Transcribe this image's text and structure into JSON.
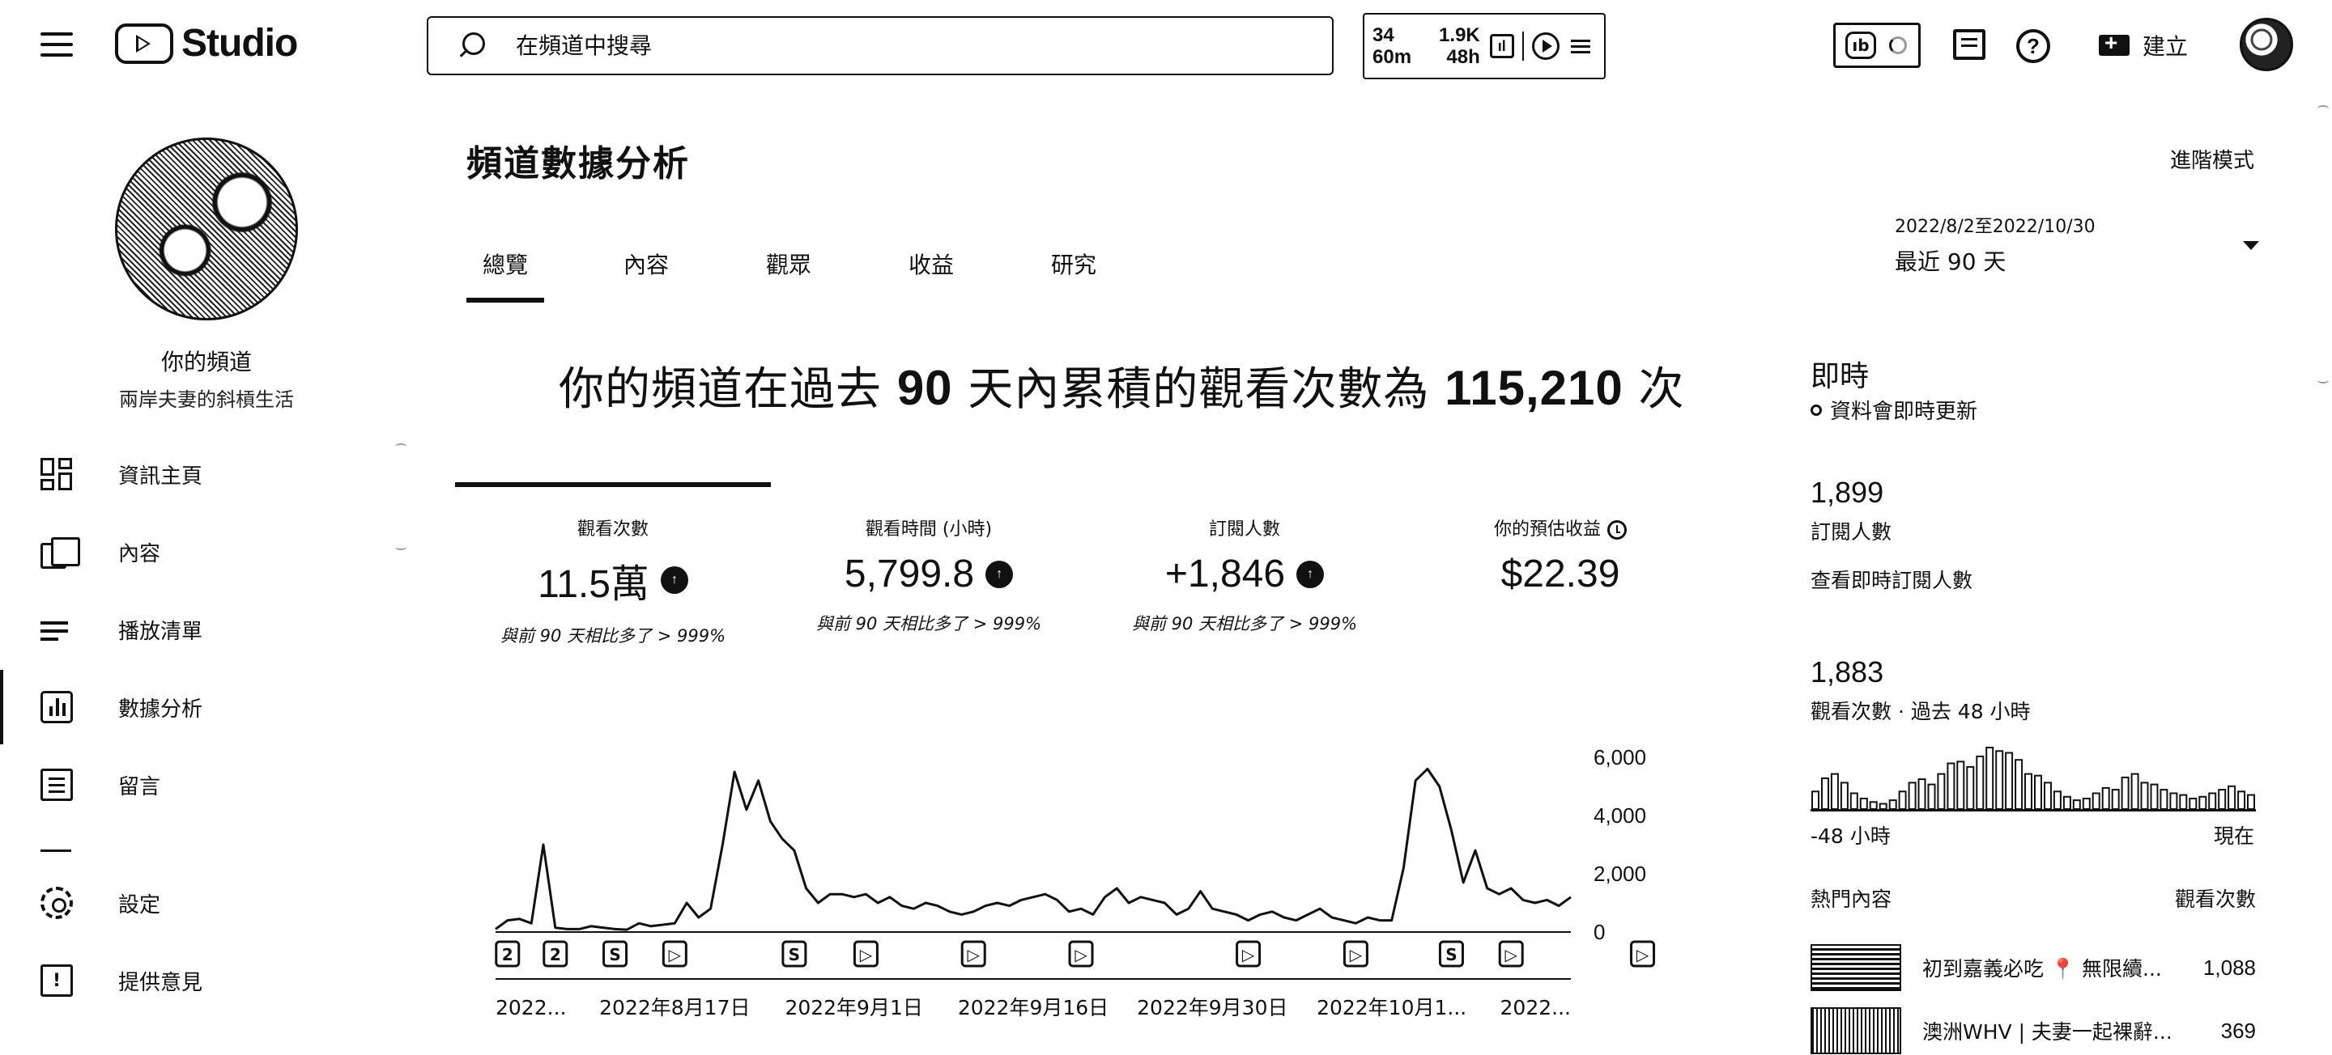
{
  "topbar": {
    "logo_text": "Studio",
    "search_placeholder": "在頻道中搜尋",
    "widget": {
      "a_top": "34",
      "a_bottom": "60m",
      "b_top": "1.9K",
      "b_bottom": "48h"
    },
    "create_label": "建立"
  },
  "sidebar": {
    "channel_name": "你的頻道",
    "channel_handle": "兩岸夫妻的斜槓生活",
    "items": [
      {
        "label": "資訊主頁",
        "icon": "dashboard-icon"
      },
      {
        "label": "內容",
        "icon": "content-icon"
      },
      {
        "label": "播放清單",
        "icon": "playlist-icon"
      },
      {
        "label": "數據分析",
        "icon": "analytics-icon"
      },
      {
        "label": "留言",
        "icon": "comments-icon"
      },
      {
        "label": "設定",
        "icon": "settings-icon"
      },
      {
        "label": "提供意見",
        "icon": "feedback-icon"
      }
    ]
  },
  "main": {
    "title": "頻道數據分析",
    "advanced_mode": "進階模式",
    "tabs": [
      "總覽",
      "內容",
      "觀眾",
      "收益",
      "研究"
    ],
    "date_range": "2022/8/2至2022/10/30",
    "date_label": "最近 90 天",
    "headline_pre": "你的頻道在過去 ",
    "headline_days": "90",
    "headline_mid": " 天內累積的觀看次數為 ",
    "headline_views": "115,210",
    "headline_post": " 次",
    "metrics": [
      {
        "label": "觀看次數",
        "value": "11.5萬",
        "compare": "與前 90 天相比多了 > 999%"
      },
      {
        "label": "觀看時間 (小時)",
        "value": "5,799.8",
        "compare": "與前 90 天相比多了 > 999%"
      },
      {
        "label": "訂閱人數",
        "value": "+1,846",
        "compare": "與前 90 天相比多了 > 999%"
      },
      {
        "label": "你的預估收益",
        "value": "$22.39",
        "compare": ""
      }
    ]
  },
  "realtime": {
    "title": "即時",
    "subtitle": "資料會即時更新",
    "subs_value": "1,899",
    "subs_label": "訂閱人數",
    "subs_link": "查看即時訂閱人數",
    "views_value": "1,883",
    "views_label": "觀看次數 · 過去 48 小時",
    "axis_start": "-48 小時",
    "axis_end": "現在",
    "top_content_header": "熱門內容",
    "top_views_header": "觀看次數",
    "top_items": [
      {
        "title": "初到嘉義必吃 📍 無限續...",
        "views": "1,088"
      },
      {
        "title": "澳洲WHV | 夫妻一起裸辭...",
        "views": "369"
      }
    ],
    "spark_values": [
      20,
      35,
      40,
      30,
      18,
      12,
      8,
      6,
      10,
      20,
      30,
      34,
      28,
      40,
      52,
      54,
      48,
      60,
      70,
      66,
      64,
      56,
      40,
      38,
      30,
      20,
      14,
      10,
      12,
      18,
      24,
      22,
      36,
      40,
      30,
      28,
      22,
      18,
      16,
      12,
      14,
      18,
      22,
      26,
      20,
      16
    ]
  },
  "chart_data": {
    "type": "line",
    "x_tick_labels": [
      "2022...",
      "2022年8月17日",
      "2022年9月1日",
      "2022年9月16日",
      "2022年9月30日",
      "2022年10月1...",
      "2022..."
    ],
    "ylim": [
      0,
      6000
    ],
    "y_ticks": [
      "6,000",
      "4,000",
      "2,000",
      "0"
    ],
    "series": [
      {
        "values": [
          100,
          400,
          450,
          300,
          3000,
          150,
          100,
          100,
          200,
          150,
          100,
          80,
          300,
          200,
          250,
          300,
          1000,
          500,
          800,
          3000,
          5500,
          4200,
          5200,
          3800,
          3200,
          2800,
          1500,
          1000,
          1300,
          1300,
          1200,
          1300,
          1000,
          1200,
          900,
          800,
          1000,
          900,
          700,
          600,
          700,
          900,
          1000,
          900,
          1100,
          1200,
          1300,
          1100,
          700,
          800,
          600,
          1200,
          1500,
          1000,
          1200,
          1100,
          1000,
          600,
          800,
          1400,
          800,
          700,
          600,
          400,
          600,
          700,
          500,
          400,
          600,
          800,
          500,
          400,
          300,
          500,
          400,
          400,
          2200,
          5200,
          5600,
          5000,
          3500,
          1700,
          2800,
          1500,
          1300,
          1500,
          1100,
          1000,
          1100,
          900,
          1200
        ]
      }
    ],
    "markers": [
      {
        "index": 1,
        "label": "2"
      },
      {
        "index": 5,
        "label": "2"
      },
      {
        "index": 10,
        "label": "S"
      },
      {
        "index": 15,
        "label": "▷"
      },
      {
        "index": 25,
        "label": "S"
      },
      {
        "index": 31,
        "label": "▷"
      },
      {
        "index": 40,
        "label": "▷"
      },
      {
        "index": 49,
        "label": "▷"
      },
      {
        "index": 63,
        "label": "▷"
      },
      {
        "index": 72,
        "label": "▷"
      },
      {
        "index": 80,
        "label": "S"
      },
      {
        "index": 85,
        "label": "▷"
      },
      {
        "index": 96,
        "label": "▷"
      }
    ]
  }
}
